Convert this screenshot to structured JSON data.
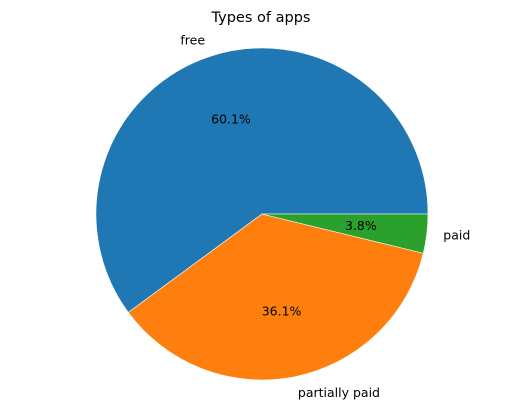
{
  "chart_data": {
    "type": "pie",
    "title": "Types of apps",
    "slices": [
      {
        "label": "free",
        "value": 60.1,
        "pct_label": "60.1%",
        "color": "#1f77b4"
      },
      {
        "label": "partially paid",
        "value": 36.1,
        "pct_label": "36.1%",
        "color": "#ff7f0e"
      },
      {
        "label": "paid",
        "value": 3.8,
        "pct_label": "3.8%",
        "color": "#2ca02c"
      }
    ],
    "start_angle_deg": 0,
    "direction": "counterclockwise",
    "legend": "none"
  }
}
